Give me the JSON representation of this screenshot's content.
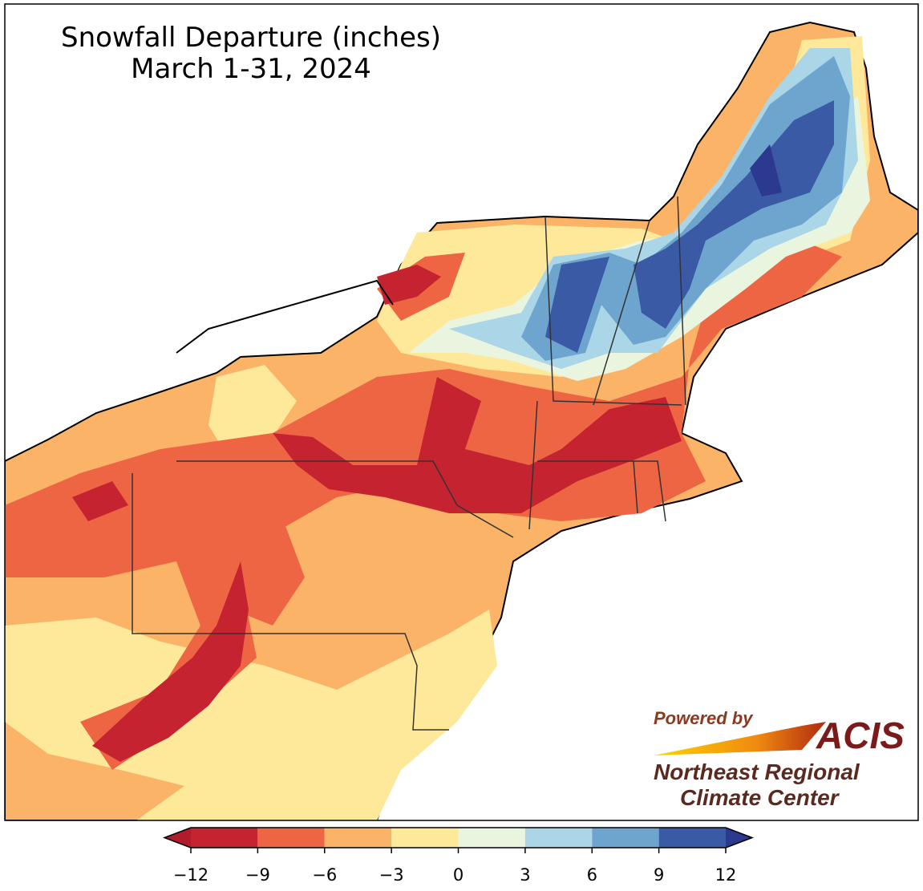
{
  "title": "Snowfall Departure (inches)",
  "subtitle": "March 1-31, 2024",
  "colorbar": {
    "ticks": [
      {
        "value": -12,
        "label": "−12"
      },
      {
        "value": -9,
        "label": "−9"
      },
      {
        "value": -6,
        "label": "−6"
      },
      {
        "value": -3,
        "label": "−3"
      },
      0,
      3,
      6,
      9,
      12
    ],
    "colors": [
      "#c62330",
      "#ee6544",
      "#fbb367",
      "#fee99b",
      "#eaf5e0",
      "#aad6e8",
      "#6ea5cf",
      "#3a5aa6"
    ],
    "under_color": "#b01c2a",
    "over_color": "#2b3a8f"
  },
  "logo": {
    "powered_by": "Powered by",
    "brand": "ACIS",
    "org_line1": "Northeast Regional",
    "org_line2": "Climate Center"
  }
}
